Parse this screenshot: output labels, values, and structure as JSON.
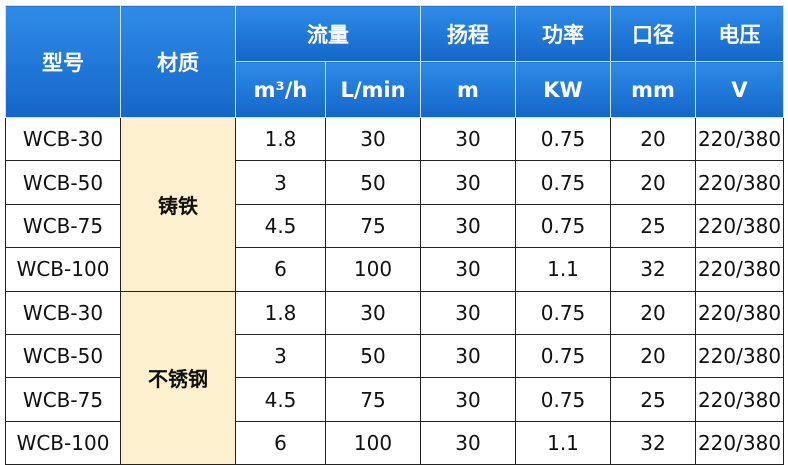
{
  "header": {
    "model": "型号",
    "material": "材质",
    "flow": "流量",
    "head": "扬程",
    "power": "功率",
    "diameter": "口径",
    "voltage": "电压",
    "units": {
      "flow_m3h": "m³/h",
      "flow_lmin": "L/min",
      "head": "m",
      "power": "KW",
      "diameter": "mm",
      "voltage": "V"
    }
  },
  "groups": [
    {
      "material": "铸铁",
      "rows": [
        [
          "WCB-30",
          "1.8",
          "30",
          "30",
          "0.75",
          "20",
          "220/380"
        ],
        [
          "WCB-50",
          "3",
          "50",
          "30",
          "0.75",
          "20",
          "220/380"
        ],
        [
          "WCB-75",
          "4.5",
          "75",
          "30",
          "0.75",
          "25",
          "220/380"
        ],
        [
          "WCB-100",
          "6",
          "100",
          "30",
          "1.1",
          "32",
          "220/380"
        ]
      ]
    },
    {
      "material": "不锈钢",
      "rows": [
        [
          "WCB-30",
          "1.8",
          "30",
          "30",
          "0.75",
          "20",
          "220/380"
        ],
        [
          "WCB-50",
          "3",
          "50",
          "30",
          "0.75",
          "20",
          "220/380"
        ],
        [
          "WCB-75",
          "4.5",
          "75",
          "30",
          "0.75",
          "25",
          "220/380"
        ],
        [
          "WCB-100",
          "6",
          "100",
          "30",
          "1.1",
          "32",
          "220/380"
        ]
      ]
    }
  ]
}
